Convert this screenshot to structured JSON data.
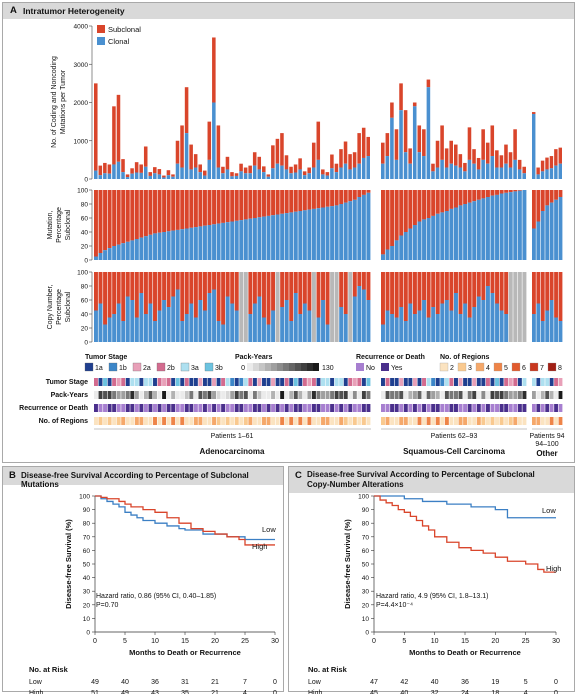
{
  "panelA": {
    "letter": "A",
    "title": "Intratumor Heterogeneity",
    "legend_subclonal": "Subclonal",
    "legend_clonal": "Clonal",
    "ylabel_mut1": "No. of Coding and Noncoding",
    "ylabel_mut2": "Mutations per Tumor",
    "ylabel_pct1": "Mutation,",
    "ylabel_pct2": "Percentage",
    "ylabel_pct3": "Subclonal",
    "ylabel_cn1": "Copy Number,",
    "ylabel_cn2": "Percentage",
    "ylabel_cn3": "Subclonal",
    "legend_stage_title": "Tumor Stage",
    "legend_stages": [
      "1a",
      "1b",
      "2a",
      "2b",
      "3a",
      "3b"
    ],
    "legend_py_title": "Pack-Years",
    "legend_py_min": "0",
    "legend_py_max": "130",
    "legend_rec_title": "Recurrence or Death",
    "legend_rec": [
      "No",
      "Yes"
    ],
    "legend_reg_title": "No. of Regions",
    "legend_regions": [
      "2",
      "3",
      "4",
      "5",
      "6",
      "7",
      "8"
    ],
    "track_labels": [
      "Tumor Stage",
      "Pack-Years",
      "Recurrence or Death",
      "No. of Regions"
    ],
    "group_patients": [
      "Patients 1–61",
      "Patients 62–93",
      "Patients 94–100"
    ],
    "group_names": [
      "Adenocarcinoma",
      "Squamous-Cell Carcinoma",
      "Other"
    ]
  },
  "panelB": {
    "letter": "B",
    "title": "Disease-free Survival According to Percentage of Subclonal Mutations",
    "ylabel": "Disease-free Survival (%)",
    "xlabel": "Months to Death or Recurrence",
    "hr_line1": "Hazard ratio, 0.86 (95% CI, 0.40–1.85)",
    "hr_line2": "P=0.70",
    "label_low": "Low",
    "label_high": "High",
    "risk_title": "No. at Risk",
    "risk": [
      {
        "group": "Low",
        "values": [
          "49",
          "40",
          "36",
          "31",
          "21",
          "7",
          "0"
        ]
      },
      {
        "group": "High",
        "values": [
          "51",
          "49",
          "43",
          "35",
          "21",
          "4",
          "0"
        ]
      }
    ]
  },
  "panelC": {
    "letter": "C",
    "title1": "Disease-free Survival According to Percentage of Subclonal",
    "title2": "Copy-Number Alterations",
    "ylabel": "Disease-free Survival (%)",
    "xlabel": "Months to Death or Recurrence",
    "hr_line1": "Hazard ratio, 4.9 (95% CI, 1.8–13.1)",
    "hr_line2": "P=4.4×10⁻⁴",
    "label_low": "Low",
    "label_high": "High",
    "risk_title": "No. at Risk",
    "risk": [
      {
        "group": "Low",
        "values": [
          "47",
          "42",
          "40",
          "36",
          "19",
          "5",
          "0"
        ]
      },
      {
        "group": "High",
        "values": [
          "45",
          "40",
          "32",
          "24",
          "18",
          "4",
          "0"
        ]
      }
    ]
  },
  "colors": {
    "subclonal": "#d9452b",
    "clonal": "#4a90d0",
    "unknown": "#b8b8b8",
    "stage": [
      "#1f3f8f",
      "#3c86c8",
      "#e8a0b8",
      "#d36b8f",
      "#aee0f0",
      "#6cc3e0"
    ],
    "recNo": "#a77fd0",
    "recYes": "#4a2f8c",
    "regions": [
      "#fbe3c0",
      "#f9c98f",
      "#f5a86a",
      "#ee8448",
      "#e15a2d",
      "#c9381f",
      "#a11f14"
    ]
  },
  "chart_data": [
    {
      "type": "bar",
      "title": "No. of Coding and Noncoding Mutations per Tumor",
      "ylabel": "No. of Coding and Noncoding Mutations per Tumor",
      "ylim": [
        0,
        4000
      ],
      "yticks": [
        0,
        1000,
        2000,
        3000,
        4000
      ],
      "groups": [
        {
          "name": "Adenocarcinoma",
          "label": "Patients 1–61",
          "total": [
            2500,
            350,
            420,
            380,
            1900,
            2200,
            520,
            120,
            280,
            440,
            380,
            850,
            180,
            310,
            260,
            90,
            230,
            120,
            1000,
            1400,
            2400,
            900,
            650,
            380,
            220,
            1500,
            3700,
            1400,
            320,
            580,
            180,
            150,
            400,
            300,
            350,
            700,
            580,
            330,
            120,
            880,
            1050,
            1200,
            620,
            320,
            380,
            540,
            200,
            300,
            950,
            1500,
            250,
            180,
            640,
            400,
            780,
            980,
            650,
            700,
            1200,
            1340,
            1100
          ],
          "clonal": [
            220,
            100,
            150,
            140,
            380,
            450,
            180,
            50,
            140,
            170,
            160,
            320,
            80,
            150,
            120,
            40,
            100,
            60,
            400,
            300,
            1200,
            250,
            300,
            180,
            90,
            500,
            2000,
            300,
            150,
            250,
            70,
            80,
            200,
            150,
            150,
            350,
            250,
            180,
            60,
            280,
            400,
            350,
            250,
            150,
            170,
            250,
            100,
            150,
            300,
            500,
            120,
            90,
            280,
            180,
            300,
            400,
            250,
            300,
            400,
            550,
            600
          ]
        },
        {
          "name": "Squamous-Cell Carcinoma",
          "label": "Patients 62–93",
          "total": [
            950,
            1200,
            2000,
            1300,
            2500,
            1800,
            800,
            2000,
            1400,
            1300,
            2600,
            400,
            1000,
            1400,
            800,
            1000,
            900,
            650,
            420,
            1350,
            780,
            550,
            1300,
            950,
            1400,
            750,
            620,
            900,
            700,
            1300,
            500,
            320
          ],
          "clonal": [
            400,
            600,
            1600,
            500,
            1800,
            700,
            400,
            1900,
            700,
            600,
            2400,
            200,
            300,
            500,
            300,
            400,
            350,
            300,
            200,
            500,
            400,
            250,
            500,
            400,
            600,
            300,
            300,
            400,
            300,
            500,
            250,
            150
          ]
        },
        {
          "name": "Other",
          "label": "Patients 94–100",
          "total": [
            1750,
            300,
            480,
            560,
            600,
            780,
            820
          ],
          "clonal": [
            1700,
            120,
            200,
            250,
            280,
            350,
            400
          ]
        }
      ],
      "series": [
        {
          "name": "Subclonal"
        },
        {
          "name": "Clonal"
        }
      ]
    },
    {
      "type": "bar",
      "title": "Mutation, Percentage Subclonal",
      "ylabel": "Mutation, Percentage Subclonal",
      "ylim": [
        0,
        100
      ],
      "yticks": [
        0,
        20,
        40,
        60,
        80,
        100
      ],
      "stacked_percent": true,
      "groups": [
        {
          "name": "Adenocarcinoma",
          "clonal_pct": [
            5,
            10,
            14,
            17,
            20,
            22,
            24,
            26,
            28,
            30,
            32,
            34,
            36,
            38,
            39,
            40,
            41,
            42,
            43,
            44,
            45,
            46,
            47,
            48,
            49,
            50,
            51,
            52,
            53,
            54,
            55,
            56,
            57,
            58,
            59,
            60,
            61,
            62,
            63,
            64,
            65,
            66,
            67,
            68,
            69,
            70,
            71,
            72,
            73,
            74,
            75,
            76,
            77,
            78,
            80,
            82,
            84,
            86,
            90,
            93,
            96
          ]
        },
        {
          "name": "Squamous-Cell Carcinoma",
          "clonal_pct": [
            8,
            15,
            20,
            28,
            35,
            40,
            45,
            50,
            55,
            58,
            60,
            63,
            66,
            68,
            70,
            73,
            75,
            78,
            80,
            82,
            84,
            86,
            88,
            90,
            92,
            93,
            95,
            96,
            97,
            98,
            99,
            100
          ]
        },
        {
          "name": "Other",
          "clonal_pct": [
            45,
            55,
            70,
            78,
            82,
            86,
            90
          ]
        }
      ],
      "series": [
        {
          "name": "Subclonal"
        },
        {
          "name": "Clonal"
        }
      ]
    },
    {
      "type": "bar",
      "title": "Copy Number, Percentage Subclonal",
      "ylabel": "Copy Number, Percentage Subclonal",
      "ylim": [
        0,
        100
      ],
      "yticks": [
        0,
        20,
        40,
        60,
        80,
        100
      ],
      "stacked_percent": true,
      "groups": [
        {
          "name": "Adenocarcinoma",
          "clonal_pct": [
            45,
            55,
            25,
            35,
            40,
            55,
            30,
            65,
            60,
            35,
            70,
            40,
            55,
            30,
            45,
            60,
            50,
            65,
            75,
            30,
            40,
            55,
            35,
            60,
            45,
            70,
            75,
            30,
            25,
            65,
            55,
            45,
            -1,
            -1,
            40,
            55,
            65,
            35,
            25,
            45,
            -1,
            50,
            60,
            30,
            70,
            40,
            55,
            45,
            -1,
            35,
            60,
            25,
            -1,
            -1,
            50,
            40,
            -1,
            65,
            80,
            75,
            60
          ]
        },
        {
          "name": "Squamous-Cell Carcinoma",
          "clonal_pct": [
            25,
            45,
            40,
            35,
            50,
            30,
            55,
            40,
            45,
            60,
            35,
            50,
            40,
            55,
            60,
            45,
            70,
            40,
            55,
            35,
            50,
            65,
            60,
            80,
            70,
            55,
            45,
            40,
            -1,
            -1,
            -1,
            -1
          ]
        },
        {
          "name": "Other",
          "clonal_pct": [
            40,
            55,
            30,
            45,
            60,
            35,
            30
          ]
        }
      ],
      "series": [
        {
          "name": "Subclonal"
        },
        {
          "name": "Clonal"
        },
        {
          "name": "unknown"
        }
      ]
    },
    {
      "type": "line",
      "title": "Disease-free Survival According to Percentage of Subclonal Mutations",
      "xlabel": "Months to Death or Recurrence",
      "ylabel": "Disease-free Survival (%)",
      "xlim": [
        0,
        30
      ],
      "ylim": [
        0,
        100
      ],
      "xticks": [
        0,
        5,
        10,
        15,
        20,
        25,
        30
      ],
      "yticks": [
        0,
        10,
        20,
        30,
        40,
        50,
        60,
        70,
        80,
        90,
        100
      ],
      "series": [
        {
          "name": "Low",
          "color": "#3b7fc4",
          "x": [
            0,
            1,
            2,
            3,
            4,
            5,
            6,
            7,
            8,
            10,
            12,
            14,
            15,
            18,
            22,
            25,
            30
          ],
          "y": [
            100,
            98,
            96,
            94,
            92,
            88,
            86,
            84,
            82,
            80,
            78,
            76,
            75,
            72,
            70,
            68,
            68
          ]
        },
        {
          "name": "High",
          "color": "#d9452b",
          "x": [
            0,
            1,
            2,
            4,
            5,
            6,
            8,
            10,
            12,
            14,
            16,
            18,
            20,
            22,
            24,
            25,
            30
          ],
          "y": [
            100,
            99,
            98,
            96,
            94,
            92,
            90,
            88,
            84,
            80,
            76,
            74,
            72,
            70,
            68,
            64,
            64
          ]
        }
      ]
    },
    {
      "type": "line",
      "title": "Disease-free Survival According to Percentage of Subclonal Copy-Number Alterations",
      "xlabel": "Months to Death or Recurrence",
      "ylabel": "Disease-free Survival (%)",
      "xlim": [
        0,
        30
      ],
      "ylim": [
        0,
        100
      ],
      "xticks": [
        0,
        5,
        10,
        15,
        20,
        25,
        30
      ],
      "yticks": [
        0,
        10,
        20,
        30,
        40,
        50,
        60,
        70,
        80,
        90,
        100
      ],
      "series": [
        {
          "name": "Low",
          "color": "#3b7fc4",
          "x": [
            0,
            3,
            5,
            8,
            12,
            16,
            20,
            22,
            25,
            30
          ],
          "y": [
            100,
            100,
            98,
            96,
            94,
            92,
            90,
            84,
            84,
            84
          ]
        },
        {
          "name": "High",
          "color": "#d9452b",
          "x": [
            0,
            1,
            2,
            3,
            4,
            5,
            6,
            7,
            8,
            9,
            10,
            12,
            14,
            16,
            18,
            20,
            22,
            25,
            27,
            28,
            30
          ],
          "y": [
            100,
            97,
            95,
            93,
            90,
            88,
            85,
            82,
            78,
            75,
            70,
            66,
            62,
            60,
            58,
            55,
            52,
            50,
            46,
            44,
            44
          ]
        }
      ]
    }
  ]
}
